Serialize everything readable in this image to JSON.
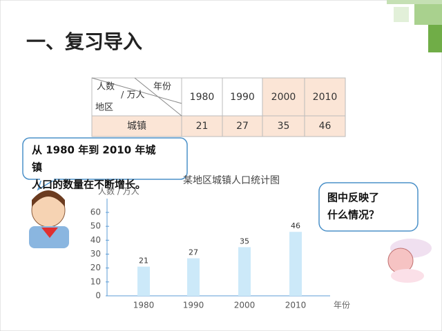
{
  "header": {
    "title": "一、复习导入"
  },
  "table": {
    "corner": [
      "人数",
      "/ 万人",
      "年份",
      "地区"
    ],
    "columns": [
      "1980",
      "1990",
      "2000",
      "2010"
    ],
    "rows": [
      [
        "城镇",
        "21",
        "27",
        "35",
        "46"
      ]
    ]
  },
  "bubbles": {
    "left": [
      "从 1980 年到 2010 年城",
      "镇",
      "人口的数量在不断增长。"
    ],
    "right": [
      "图中反映了",
      "什么情况？"
    ]
  },
  "chart_data": {
    "type": "bar",
    "title": "某地区城镇人口统计图",
    "y_label": "人数 / 万人",
    "x_label": "年份",
    "categories": [
      "1980",
      "1990",
      "2000",
      "2010"
    ],
    "values": [
      21,
      27,
      35,
      46
    ],
    "color": "#cce9f9",
    "ylim": [
      0,
      60
    ],
    "yticks": [
      0,
      10,
      20,
      30,
      40,
      50,
      60
    ]
  }
}
